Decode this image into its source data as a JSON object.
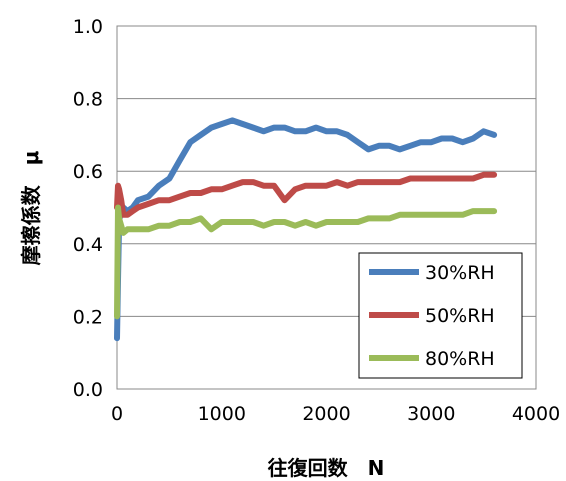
{
  "chart_data": {
    "type": "line",
    "xlabel": "往復回数　N",
    "ylabel": "摩擦係数　μ",
    "xlim": [
      0,
      4000
    ],
    "ylim": [
      0.0,
      1.0
    ],
    "x_ticks": [
      "0",
      "1000",
      "2000",
      "3000",
      "4000"
    ],
    "y_ticks": [
      "0.0",
      "0.2",
      "0.4",
      "0.6",
      "0.8",
      "1.0"
    ],
    "grid": "horizontal",
    "legend_position": "bottom-right",
    "series": [
      {
        "name": "30%RH",
        "color": "#4a7ebb",
        "x": [
          0,
          10,
          20,
          40,
          60,
          100,
          150,
          200,
          300,
          400,
          500,
          600,
          700,
          800,
          900,
          1000,
          1100,
          1200,
          1300,
          1400,
          1500,
          1600,
          1700,
          1800,
          1900,
          2000,
          2100,
          2200,
          2300,
          2400,
          2500,
          2600,
          2700,
          2800,
          2900,
          3000,
          3100,
          3200,
          3300,
          3400,
          3500,
          3600
        ],
        "y": [
          0.14,
          0.3,
          0.46,
          0.5,
          0.5,
          0.49,
          0.5,
          0.52,
          0.53,
          0.56,
          0.58,
          0.63,
          0.68,
          0.7,
          0.72,
          0.73,
          0.74,
          0.73,
          0.72,
          0.71,
          0.72,
          0.72,
          0.71,
          0.71,
          0.72,
          0.71,
          0.71,
          0.7,
          0.68,
          0.66,
          0.67,
          0.67,
          0.66,
          0.67,
          0.68,
          0.68,
          0.69,
          0.69,
          0.68,
          0.69,
          0.71,
          0.7
        ]
      },
      {
        "name": "50%RH",
        "color": "#be4b48",
        "x": [
          0,
          10,
          20,
          40,
          60,
          100,
          150,
          200,
          300,
          400,
          500,
          600,
          700,
          800,
          900,
          1000,
          1100,
          1200,
          1300,
          1400,
          1500,
          1600,
          1700,
          1800,
          1900,
          2000,
          2100,
          2200,
          2300,
          2400,
          2500,
          2600,
          2700,
          2800,
          2900,
          3000,
          3100,
          3200,
          3300,
          3400,
          3500,
          3600
        ],
        "y": [
          0.5,
          0.56,
          0.55,
          0.52,
          0.48,
          0.48,
          0.49,
          0.5,
          0.51,
          0.52,
          0.52,
          0.53,
          0.54,
          0.54,
          0.55,
          0.55,
          0.56,
          0.57,
          0.57,
          0.56,
          0.56,
          0.52,
          0.55,
          0.56,
          0.56,
          0.56,
          0.57,
          0.56,
          0.57,
          0.57,
          0.57,
          0.57,
          0.57,
          0.58,
          0.58,
          0.58,
          0.58,
          0.58,
          0.58,
          0.58,
          0.59,
          0.59
        ]
      },
      {
        "name": "80%RH",
        "color": "#9bbb59",
        "x": [
          0,
          10,
          20,
          40,
          60,
          100,
          150,
          200,
          300,
          400,
          500,
          600,
          700,
          800,
          900,
          1000,
          1100,
          1200,
          1300,
          1400,
          1500,
          1600,
          1700,
          1800,
          1900,
          2000,
          2100,
          2200,
          2300,
          2400,
          2500,
          2600,
          2700,
          2800,
          2900,
          3000,
          3100,
          3200,
          3300,
          3400,
          3500,
          3600
        ],
        "y": [
          0.2,
          0.5,
          0.47,
          0.45,
          0.43,
          0.44,
          0.44,
          0.44,
          0.44,
          0.45,
          0.45,
          0.46,
          0.46,
          0.47,
          0.44,
          0.46,
          0.46,
          0.46,
          0.46,
          0.45,
          0.46,
          0.46,
          0.45,
          0.46,
          0.45,
          0.46,
          0.46,
          0.46,
          0.46,
          0.47,
          0.47,
          0.47,
          0.48,
          0.48,
          0.48,
          0.48,
          0.48,
          0.48,
          0.48,
          0.49,
          0.49,
          0.49
        ]
      }
    ]
  }
}
